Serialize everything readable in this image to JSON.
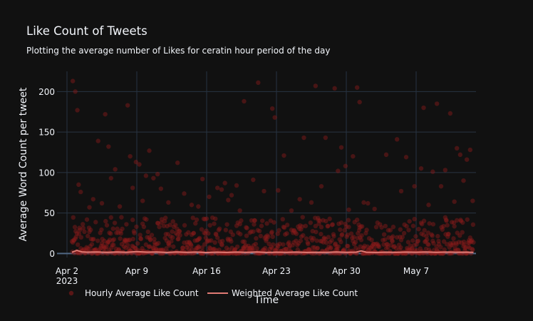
{
  "chart_data": {
    "type": "scatter",
    "title": "Like Count of Tweets",
    "subtitle": "Plotting the average number of Likes for ceratin hour period of the day",
    "xlabel": "Time",
    "ylabel": "Average Word Count per tweet",
    "x_tick_labels": [
      "Apr 2",
      "Apr 9",
      "Apr 16",
      "Apr 23",
      "Apr 30",
      "May 7"
    ],
    "x_tick_year": "2023",
    "y_ticks": [
      0,
      50,
      100,
      150,
      200
    ],
    "xlim": [
      "2023-04-01",
      "2023-05-13"
    ],
    "ylim": [
      -5,
      225
    ],
    "grid": true,
    "legend_position": "bottom",
    "colors": {
      "background": "#111111",
      "grid": "#283442",
      "text": "#f2f5fa",
      "scatter": "#8b1a1a",
      "line": "#e07b74"
    },
    "series": [
      {
        "name": "Hourly Average Like Count",
        "mode": "markers",
        "points": [
          [
            "2023-04-02 14:00",
            213
          ],
          [
            "2023-04-02 20:00",
            200
          ],
          [
            "2023-04-03 01:00",
            177
          ],
          [
            "2023-04-03 04:00",
            85
          ],
          [
            "2023-04-03 09:00",
            76
          ],
          [
            "2023-04-04 06:00",
            57
          ],
          [
            "2023-04-04 15:00",
            67
          ],
          [
            "2023-04-05 03:00",
            139
          ],
          [
            "2023-04-05 12:00",
            62
          ],
          [
            "2023-04-05 20:00",
            172
          ],
          [
            "2023-04-06 04:00",
            132
          ],
          [
            "2023-04-06 10:00",
            93
          ],
          [
            "2023-04-06 20:00",
            104
          ],
          [
            "2023-04-07 07:00",
            58
          ],
          [
            "2023-04-08 02:00",
            183
          ],
          [
            "2023-04-08 08:00",
            120
          ],
          [
            "2023-04-08 14:00",
            81
          ],
          [
            "2023-04-08 22:00",
            113
          ],
          [
            "2023-04-09 06:00",
            110
          ],
          [
            "2023-04-09 14:00",
            65
          ],
          [
            "2023-04-09 22:00",
            96
          ],
          [
            "2023-04-10 06:00",
            127
          ],
          [
            "2023-04-10 16:00",
            93
          ],
          [
            "2023-04-11 02:00",
            98
          ],
          [
            "2023-04-11 10:00",
            80
          ],
          [
            "2023-04-12 04:00",
            63
          ],
          [
            "2023-04-13 02:00",
            112
          ],
          [
            "2023-04-13 18:00",
            74
          ],
          [
            "2023-04-14 12:00",
            60
          ],
          [
            "2023-04-15 04:00",
            58
          ],
          [
            "2023-04-15 14:00",
            92
          ],
          [
            "2023-04-16 06:00",
            70
          ],
          [
            "2023-04-17 02:00",
            81
          ],
          [
            "2023-04-17 12:00",
            79
          ],
          [
            "2023-04-17 20:00",
            87
          ],
          [
            "2023-04-18 04:00",
            66
          ],
          [
            "2023-04-18 12:00",
            72
          ],
          [
            "2023-04-19 00:00",
            84
          ],
          [
            "2023-04-19 08:00",
            53
          ],
          [
            "2023-04-19 18:00",
            188
          ],
          [
            "2023-04-20 16:00",
            91
          ],
          [
            "2023-04-21 04:00",
            211
          ],
          [
            "2023-04-21 18:00",
            77
          ],
          [
            "2023-04-22 14:00",
            179
          ],
          [
            "2023-04-22 20:00",
            168
          ],
          [
            "2023-04-23 04:00",
            78
          ],
          [
            "2023-04-23 18:00",
            121
          ],
          [
            "2023-04-24 12:00",
            53
          ],
          [
            "2023-04-25 08:00",
            67
          ],
          [
            "2023-04-25 18:00",
            143
          ],
          [
            "2023-04-26 12:00",
            63
          ],
          [
            "2023-04-26 22:00",
            207
          ],
          [
            "2023-04-27 12:00",
            83
          ],
          [
            "2023-04-27 22:00",
            143
          ],
          [
            "2023-04-28 20:00",
            204
          ],
          [
            "2023-04-29 04:00",
            102
          ],
          [
            "2023-04-29 12:00",
            131
          ],
          [
            "2023-04-29 22:00",
            108
          ],
          [
            "2023-04-30 06:00",
            54
          ],
          [
            "2023-04-30 16:00",
            120
          ],
          [
            "2023-05-01 02:00",
            205
          ],
          [
            "2023-05-01 08:00",
            187
          ],
          [
            "2023-05-01 18:00",
            63
          ],
          [
            "2023-05-02 04:00",
            62
          ],
          [
            "2023-05-02 20:00",
            55
          ],
          [
            "2023-05-04 00:00",
            122
          ],
          [
            "2023-05-05 02:00",
            141
          ],
          [
            "2023-05-05 12:00",
            77
          ],
          [
            "2023-05-06 00:00",
            119
          ],
          [
            "2023-05-06 20:00",
            83
          ],
          [
            "2023-05-07 12:00",
            105
          ],
          [
            "2023-05-07 18:00",
            180
          ],
          [
            "2023-05-08 06:00",
            60
          ],
          [
            "2023-05-08 16:00",
            101
          ],
          [
            "2023-05-09 02:00",
            185
          ],
          [
            "2023-05-09 12:00",
            83
          ],
          [
            "2023-05-09 22:00",
            103
          ],
          [
            "2023-05-10 10:00",
            173
          ],
          [
            "2023-05-10 20:00",
            64
          ],
          [
            "2023-05-11 02:00",
            130
          ],
          [
            "2023-05-11 10:00",
            122
          ],
          [
            "2023-05-11 18:00",
            90
          ],
          [
            "2023-05-12 02:00",
            116
          ],
          [
            "2023-05-12 10:00",
            128
          ],
          [
            "2023-05-12 16:00",
            65
          ]
        ],
        "dense_band_range": [
          0,
          45
        ]
      },
      {
        "name": "Weighted Average Like Count",
        "mode": "line",
        "points": [
          [
            "2023-04-02 12:00",
            1.5
          ],
          [
            "2023-04-03 00:00",
            3.8
          ],
          [
            "2023-04-03 12:00",
            2.0
          ],
          [
            "2023-04-04 00:00",
            1.6
          ],
          [
            "2023-04-05 00:00",
            1.9
          ],
          [
            "2023-04-06 00:00",
            1.4
          ],
          [
            "2023-04-07 00:00",
            1.8
          ],
          [
            "2023-04-08 00:00",
            1.5
          ],
          [
            "2023-04-09 00:00",
            2.2
          ],
          [
            "2023-04-10 00:00",
            1.6
          ],
          [
            "2023-04-11 00:00",
            1.9
          ],
          [
            "2023-04-12 00:00",
            1.3
          ],
          [
            "2023-04-13 00:00",
            1.8
          ],
          [
            "2023-04-14 00:00",
            1.4
          ],
          [
            "2023-04-15 00:00",
            1.7
          ],
          [
            "2023-04-16 00:00",
            1.2
          ],
          [
            "2023-04-17 00:00",
            1.6
          ],
          [
            "2023-04-18 00:00",
            1.3
          ],
          [
            "2023-04-19 00:00",
            1.7
          ],
          [
            "2023-04-20 00:00",
            1.4
          ],
          [
            "2023-04-21 00:00",
            1.8
          ],
          [
            "2023-04-22 00:00",
            1.3
          ],
          [
            "2023-04-23 00:00",
            1.6
          ],
          [
            "2023-04-24 00:00",
            1.4
          ],
          [
            "2023-04-25 00:00",
            1.7
          ],
          [
            "2023-04-26 00:00",
            1.3
          ],
          [
            "2023-04-27 00:00",
            1.5
          ],
          [
            "2023-04-28 00:00",
            1.4
          ],
          [
            "2023-04-29 00:00",
            1.8
          ],
          [
            "2023-04-30 00:00",
            1.4
          ],
          [
            "2023-05-01 00:00",
            1.6
          ],
          [
            "2023-05-01 12:00",
            3.2
          ],
          [
            "2023-05-02 00:00",
            1.5
          ],
          [
            "2023-05-03 00:00",
            1.3
          ],
          [
            "2023-05-04 00:00",
            1.6
          ],
          [
            "2023-05-05 00:00",
            1.4
          ],
          [
            "2023-05-06 00:00",
            1.7
          ],
          [
            "2023-05-07 00:00",
            1.5
          ],
          [
            "2023-05-08 00:00",
            1.8
          ],
          [
            "2023-05-09 00:00",
            1.4
          ],
          [
            "2023-05-10 00:00",
            1.7
          ],
          [
            "2023-05-11 00:00",
            1.5
          ],
          [
            "2023-05-12 00:00",
            1.6
          ],
          [
            "2023-05-12 18:00",
            1.4
          ]
        ]
      }
    ]
  }
}
